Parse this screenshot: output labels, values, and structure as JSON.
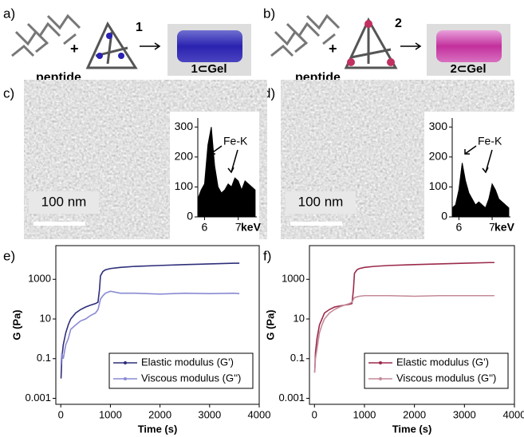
{
  "panel_labels": [
    "a)",
    "b)",
    "c)",
    "d)",
    "e)",
    "f)"
  ],
  "schemes": [
    {
      "peptide": "peptide",
      "plus": "+",
      "cage": "1",
      "gel": "1⊂Gel"
    },
    {
      "peptide": "peptide",
      "plus": "+",
      "cage": "2",
      "gel": "2⊂Gel"
    }
  ],
  "micrographs": [
    {
      "scale_bar": "100 nm"
    },
    {
      "scale_bar": "100 nm"
    }
  ],
  "chart_data": [
    {
      "type": "area",
      "x": [
        5.8,
        5.9,
        6,
        6.1,
        6.2,
        6.3,
        6.4,
        6.5,
        6.6,
        6.7,
        6.8,
        6.9,
        7,
        7.1,
        7.2,
        7.3,
        7.4,
        7.5
      ],
      "values": [
        60,
        90,
        110,
        240,
        300,
        170,
        100,
        80,
        90,
        110,
        100,
        130,
        120,
        90,
        120,
        110,
        100,
        90
      ],
      "color": "#000000",
      "xlim": [
        5.8,
        7.55
      ],
      "xticks": [
        6,
        7
      ],
      "ylim": [
        0,
        330
      ],
      "yticks": [
        0,
        100,
        200,
        300
      ],
      "x_label": "keV",
      "annotation": "Fe-K"
    },
    {
      "type": "area",
      "x": [
        5.8,
        5.9,
        6,
        6.1,
        6.2,
        6.3,
        6.4,
        6.5,
        6.6,
        6.7,
        6.8,
        6.9,
        7,
        7.1,
        7.2,
        7.3,
        7.4,
        7.5
      ],
      "values": [
        30,
        40,
        90,
        180,
        120,
        80,
        60,
        40,
        50,
        40,
        30,
        60,
        110,
        90,
        60,
        50,
        40,
        30
      ],
      "color": "#000000",
      "xlim": [
        5.8,
        7.55
      ],
      "xticks": [
        6,
        7
      ],
      "ylim": [
        0,
        330
      ],
      "yticks": [
        0,
        100,
        200,
        300
      ],
      "x_label": "keV",
      "annotation": "Fe-K"
    },
    {
      "type": "line",
      "log_y": true,
      "x": [
        5,
        20,
        50,
        100,
        150,
        200,
        300,
        400,
        500,
        600,
        700,
        750,
        780,
        800,
        850,
        900,
        1000,
        1200,
        1500,
        2000,
        2500,
        3000,
        3500,
        3600
      ],
      "series": [
        {
          "name": "Elastic modulus (G')",
          "color": "#2e2e7a",
          "values": [
            0.01,
            0.1,
            0.5,
            2,
            5,
            10,
            20,
            30,
            40,
            50,
            60,
            70,
            300,
            1500,
            2500,
            3000,
            3500,
            4000,
            4500,
            5000,
            5500,
            6000,
            6500,
            6500
          ]
        },
        {
          "name": "Viscous modulus (G'')",
          "color": "#8a8ad4",
          "values": [
            0.05,
            0.2,
            0.1,
            0.5,
            1,
            3,
            5,
            8,
            10,
            15,
            20,
            30,
            60,
            100,
            150,
            200,
            250,
            200,
            200,
            180,
            200,
            190,
            200,
            190
          ]
        }
      ],
      "xlim": [
        -100,
        4000
      ],
      "xticks": [
        0,
        1000,
        2000,
        3000,
        4000
      ],
      "ylim": [
        0.0005,
        50000
      ],
      "yticks": [
        0.001,
        0.1,
        10,
        1000
      ],
      "x_label": "Time (s)",
      "y_label": "G (Pa)",
      "legend": "lower right"
    },
    {
      "type": "line",
      "log_y": true,
      "x": [
        5,
        20,
        50,
        100,
        150,
        200,
        300,
        400,
        500,
        600,
        700,
        750,
        780,
        800,
        850,
        900,
        1000,
        1200,
        1500,
        2000,
        2500,
        3000,
        3500,
        3600
      ],
      "series": [
        {
          "name": "Elastic modulus (G')",
          "color": "#9b2a4a",
          "values": [
            0.02,
            0.2,
            1,
            5,
            10,
            20,
            30,
            40,
            45,
            50,
            55,
            60,
            300,
            2000,
            3000,
            3500,
            4000,
            4500,
            5000,
            5500,
            6000,
            6500,
            7000,
            7000
          ]
        },
        {
          "name": "Viscous modulus (G'')",
          "color": "#c48a98",
          "values": [
            0.02,
            0.1,
            0.3,
            2,
            5,
            10,
            20,
            30,
            40,
            50,
            60,
            70,
            100,
            120,
            130,
            140,
            150,
            150,
            150,
            140,
            150,
            150,
            150,
            150
          ]
        }
      ],
      "xlim": [
        -100,
        4000
      ],
      "xticks": [
        0,
        1000,
        2000,
        3000,
        4000
      ],
      "ylim": [
        0.0005,
        50000
      ],
      "yticks": [
        0.001,
        0.1,
        10,
        1000
      ],
      "x_label": "Time (s)",
      "y_label": "G (Pa)",
      "legend": "lower right"
    }
  ]
}
